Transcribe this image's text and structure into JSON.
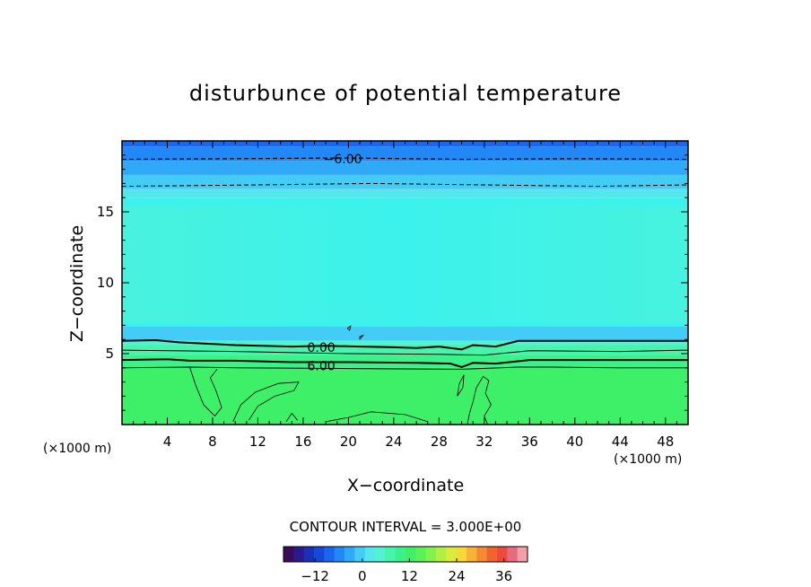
{
  "chart_data": {
    "type": "heatmap",
    "title": "disturbunce of potential temperature",
    "xlabel": "X−coordinate",
    "ylabel": "Z−coordinate",
    "x_unit_left": "(×1000 m)",
    "x_unit_right": "(×1000 m)",
    "xlim": [
      0,
      50
    ],
    "ylim": [
      0,
      20
    ],
    "x_ticks": [
      4,
      8,
      12,
      16,
      20,
      24,
      28,
      32,
      36,
      40,
      44,
      48
    ],
    "x_tick_labels": [
      "4",
      "8",
      "12",
      "16",
      "20",
      "24",
      "28",
      "32",
      "36",
      "40",
      "44",
      "48"
    ],
    "y_ticks": [
      5,
      10,
      15
    ],
    "y_tick_labels": [
      "5",
      "10",
      "15"
    ],
    "contour_interval_text": "CONTOUR INTERVAL = 3.000E+00",
    "colorbar": {
      "min": -20,
      "max": 42,
      "ticks": [
        -12,
        0,
        12,
        24,
        36
      ],
      "tick_labels": [
        "−12",
        "0",
        "12",
        "24",
        "36"
      ],
      "colors": [
        "#3b0a5a",
        "#2a1a8c",
        "#1c2fb8",
        "#1548d8",
        "#1a66ee",
        "#2288f6",
        "#30aaf8",
        "#42ccf6",
        "#55e6ee",
        "#52f2d2",
        "#46f4ac",
        "#3cf288",
        "#3ef068",
        "#5af256",
        "#84f24c",
        "#b2f044",
        "#dcec3e",
        "#f6d83a",
        "#f8b236",
        "#f68a32",
        "#f2642e",
        "#ec4a3a",
        "#e86a80",
        "#f0a0a8"
      ]
    },
    "bands": [
      {
        "z_from": 19.6,
        "z_to": 20.0,
        "color": "#1a66ee"
      },
      {
        "z_from": 18.6,
        "z_to": 19.6,
        "color": "#2288f6"
      },
      {
        "z_from": 17.6,
        "z_to": 18.6,
        "color": "#30aaf8"
      },
      {
        "z_from": 16.6,
        "z_to": 17.6,
        "color": "#42ccf6"
      },
      {
        "z_from": 16.0,
        "z_to": 16.6,
        "color": "#55e6ee"
      },
      {
        "z_from": 6.3,
        "z_to": 16.0,
        "color": "#3cf2ec"
      },
      {
        "z_from": 5.9,
        "z_to": 6.9,
        "color": "#42ccf6"
      },
      {
        "z_from": 5.6,
        "z_to": 5.9,
        "color": "#52f2d2"
      },
      {
        "z_from": 4.9,
        "z_to": 5.6,
        "color": "#46f4ac"
      },
      {
        "z_from": 4.0,
        "z_to": 4.9,
        "color": "#3cf288"
      },
      {
        "z_from": 0.0,
        "z_to": 4.0,
        "color": "#3ef068"
      }
    ],
    "contours": [
      {
        "label": "−6.00",
        "style": "dashed",
        "width": 1.2,
        "points": [
          [
            0,
            18.7
          ],
          [
            10,
            18.75
          ],
          [
            20,
            18.8
          ],
          [
            30,
            18.7
          ],
          [
            40,
            18.75
          ],
          [
            50,
            18.7
          ]
        ],
        "label_at": [
          19.5,
          18.8
        ]
      },
      {
        "label": "",
        "style": "dashed",
        "width": 1,
        "points": [
          [
            0,
            16.8
          ],
          [
            12,
            16.9
          ],
          [
            22,
            17.0
          ],
          [
            32,
            16.9
          ],
          [
            42,
            16.8
          ],
          [
            50,
            16.9
          ]
        ]
      },
      {
        "label": "0.00",
        "style": "solid",
        "width": 2,
        "points": [
          [
            0,
            5.9
          ],
          [
            3,
            5.95
          ],
          [
            5,
            5.8
          ],
          [
            10,
            5.6
          ],
          [
            15,
            5.5
          ],
          [
            18,
            5.55
          ],
          [
            21,
            5.5
          ],
          [
            24,
            5.45
          ],
          [
            26,
            5.4
          ],
          [
            28,
            5.5
          ],
          [
            30,
            5.3
          ],
          [
            31,
            5.6
          ],
          [
            33,
            5.5
          ],
          [
            35,
            5.9
          ],
          [
            38,
            5.9
          ],
          [
            44,
            5.9
          ],
          [
            50,
            5.9
          ]
        ],
        "label_at": [
          17.6,
          5.5
        ]
      },
      {
        "label": "",
        "style": "solid",
        "width": 1,
        "points": [
          [
            0,
            5.25
          ],
          [
            10,
            5.15
          ],
          [
            20,
            5.0
          ],
          [
            28,
            4.95
          ],
          [
            32,
            4.9
          ],
          [
            36,
            5.2
          ],
          [
            44,
            5.15
          ],
          [
            50,
            5.25
          ]
        ]
      },
      {
        "label": "6.00",
        "style": "solid",
        "width": 2,
        "points": [
          [
            0,
            4.55
          ],
          [
            4,
            4.6
          ],
          [
            6,
            4.5
          ],
          [
            10,
            4.5
          ],
          [
            15,
            4.4
          ],
          [
            20,
            4.4
          ],
          [
            26,
            4.35
          ],
          [
            29,
            4.3
          ],
          [
            30,
            4.05
          ],
          [
            31,
            4.35
          ],
          [
            33,
            4.3
          ],
          [
            36,
            4.55
          ],
          [
            44,
            4.55
          ],
          [
            50,
            4.55
          ]
        ],
        "label_at": [
          17.6,
          4.2
        ]
      },
      {
        "label": "",
        "style": "solid",
        "width": 1,
        "points": [
          [
            0,
            4.0
          ],
          [
            6,
            4.05
          ],
          [
            10,
            4.0
          ],
          [
            20,
            3.95
          ],
          [
            30,
            3.9
          ],
          [
            35,
            4.05
          ],
          [
            38,
            4.05
          ],
          [
            44,
            4.0
          ],
          [
            50,
            4.0
          ]
        ]
      },
      {
        "label": "",
        "style": "solid",
        "width": 0.8,
        "points": [
          [
            6,
            4.0
          ],
          [
            6.5,
            2.8
          ],
          [
            7.2,
            1.4
          ],
          [
            8.2,
            0.6
          ],
          [
            8.8,
            1.2
          ],
          [
            8.3,
            2.4
          ],
          [
            7.8,
            3.3
          ],
          [
            8.4,
            3.9
          ]
        ]
      },
      {
        "label": "",
        "style": "solid",
        "width": 0.8,
        "points": [
          [
            9.8,
            0.2
          ],
          [
            10.5,
            1.4
          ],
          [
            11.8,
            2.3
          ],
          [
            13.8,
            2.9
          ],
          [
            15.6,
            3.0
          ],
          [
            15.2,
            2.4
          ],
          [
            13.5,
            2.0
          ],
          [
            12.0,
            1.3
          ],
          [
            11.2,
            0.3
          ]
        ]
      },
      {
        "label": "",
        "style": "solid",
        "width": 0.8,
        "points": [
          [
            14.5,
            0.2
          ],
          [
            15.0,
            0.8
          ],
          [
            15.5,
            0.3
          ]
        ]
      },
      {
        "label": "",
        "style": "solid",
        "width": 0.8,
        "points": [
          [
            18,
            0.2
          ],
          [
            20,
            0.5
          ],
          [
            22,
            0.9
          ],
          [
            25,
            0.7
          ],
          [
            27,
            0.2
          ]
        ]
      },
      {
        "label": "",
        "style": "solid",
        "width": 0.8,
        "points": [
          [
            30.5,
            0.0
          ],
          [
            30.7,
            0.8
          ],
          [
            31.0,
            1.6
          ],
          [
            31.3,
            2.6
          ],
          [
            31.9,
            3.4
          ],
          [
            32.4,
            3.1
          ],
          [
            32.1,
            2.2
          ],
          [
            32.6,
            1.4
          ],
          [
            32.0,
            0.6
          ],
          [
            32.3,
            0.0
          ]
        ]
      },
      {
        "label": "",
        "style": "solid",
        "width": 0.8,
        "points": [
          [
            29.6,
            2.0
          ],
          [
            29.8,
            2.9
          ],
          [
            30.2,
            3.5
          ],
          [
            30.1,
            2.6
          ],
          [
            29.6,
            2.0
          ]
        ]
      },
      {
        "label": "",
        "style": "solid",
        "width": 0.8,
        "points": [
          [
            19.9,
            6.8
          ],
          [
            20.2,
            6.95
          ],
          [
            20.1,
            6.65
          ],
          [
            19.9,
            6.8
          ]
        ]
      },
      {
        "label": "",
        "style": "solid",
        "width": 0.8,
        "points": [
          [
            21.0,
            6.0
          ],
          [
            21.3,
            6.3
          ],
          [
            21.0,
            6.2
          ],
          [
            21.0,
            6.0
          ]
        ]
      }
    ]
  }
}
